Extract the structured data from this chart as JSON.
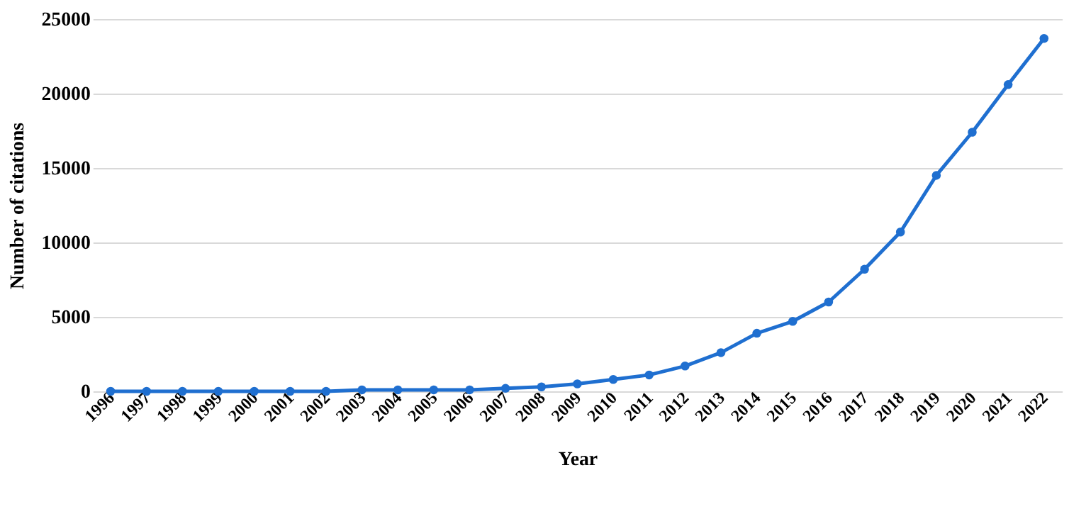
{
  "chart_data": {
    "type": "line",
    "xlabel": "Year",
    "ylabel": "Number of citations",
    "categories": [
      "1996",
      "1997",
      "1998",
      "1999",
      "2000",
      "2001",
      "2002",
      "2003",
      "2004",
      "2005",
      "2006",
      "2007",
      "2008",
      "2009",
      "2010",
      "2011",
      "2012",
      "2013",
      "2014",
      "2015",
      "2016",
      "2017",
      "2018",
      "2019",
      "2020",
      "2021",
      "2022"
    ],
    "series": [
      {
        "color": "#1f6fd0",
        "values": [
          0,
          0,
          0,
          0,
          0,
          0,
          0,
          100,
          100,
          100,
          100,
          200,
          300,
          500,
          800,
          1100,
          1700,
          2600,
          3900,
          4700,
          6000,
          8200,
          10700,
          14500,
          17400,
          20600,
          23700
        ]
      }
    ],
    "ylim": [
      0,
      25000
    ],
    "yticks": [
      0,
      5000,
      10000,
      15000,
      20000,
      25000
    ],
    "grid": "y",
    "marker": "circle",
    "line_style": "solid",
    "legend": false
  }
}
